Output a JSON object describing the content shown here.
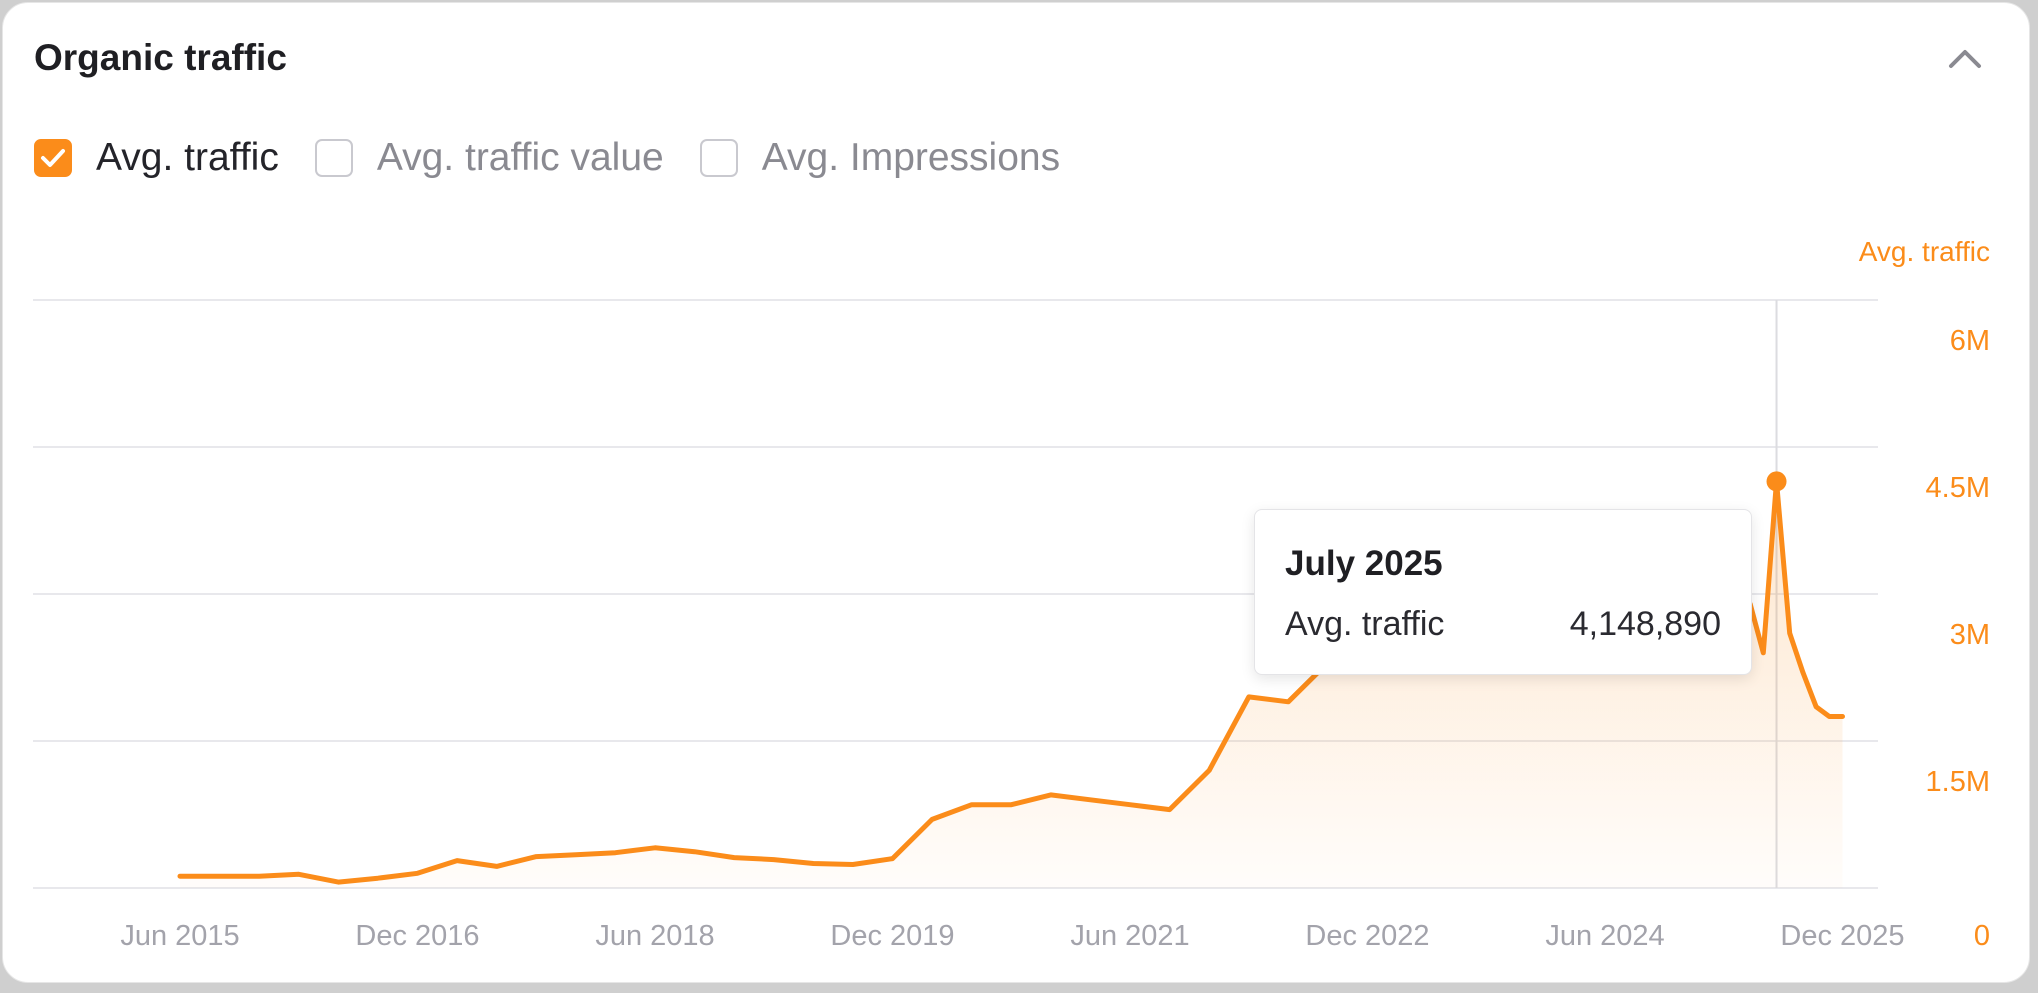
{
  "card": {
    "title": "Organic traffic",
    "collapse_icon": "chevron-up-icon"
  },
  "metrics": [
    {
      "label": "Avg. traffic",
      "checked": true
    },
    {
      "label": "Avg. traffic value",
      "checked": false
    },
    {
      "label": "Avg. Impressions",
      "checked": false
    }
  ],
  "tooltip": {
    "title": "July 2025",
    "label": "Avg. traffic",
    "value": "4,148,890"
  },
  "colors": {
    "accent": "#fb8c1a",
    "grid": "#e8e8ec",
    "tick_text": "#a3a3ab"
  },
  "chart_data": {
    "type": "area",
    "axis_title": "Avg. traffic",
    "x_ticks": [
      "Jun 2015",
      "Dec 2016",
      "Jun 2018",
      "Dec 2019",
      "Jun 2021",
      "Dec 2022",
      "Jun 2024",
      "Dec 2025"
    ],
    "y_ticks": [
      {
        "value": 0,
        "label": "0"
      },
      {
        "value": 1500000,
        "label": "1.5M"
      },
      {
        "value": 3000000,
        "label": "3M"
      },
      {
        "value": 4500000,
        "label": "4.5M"
      },
      {
        "value": 6000000,
        "label": "6M"
      }
    ],
    "ylim": [
      0,
      6000000
    ],
    "grid": true,
    "highlight": {
      "x": "2025-07",
      "y": 4148890
    },
    "series": [
      {
        "x": [
          "2015-06",
          "2015-09",
          "2015-12",
          "2016-03",
          "2016-06",
          "2016-09",
          "2016-12",
          "2017-03",
          "2017-06",
          "2017-09",
          "2017-12",
          "2018-03",
          "2018-06",
          "2018-09",
          "2018-12",
          "2019-03",
          "2019-06",
          "2019-09",
          "2019-12",
          "2020-03",
          "2020-06",
          "2020-09",
          "2020-12",
          "2021-03",
          "2021-06",
          "2021-09",
          "2021-12",
          "2022-03",
          "2022-06",
          "2022-09",
          "2022-12",
          "2023-03",
          "2023-06",
          "2023-09",
          "2023-12",
          "2024-03",
          "2024-06",
          "2024-09",
          "2024-12",
          "2025-03",
          "2025-05",
          "2025-06",
          "2025-07",
          "2025-08",
          "2025-09",
          "2025-10",
          "2025-11",
          "2025-12"
        ],
        "values": [
          120000,
          120000,
          120000,
          140000,
          60000,
          100000,
          150000,
          280000,
          220000,
          320000,
          340000,
          360000,
          410000,
          370000,
          310000,
          290000,
          250000,
          240000,
          300000,
          700000,
          850000,
          850000,
          950000,
          900000,
          850000,
          800000,
          1200000,
          1950000,
          1900000,
          2300000,
          3000000,
          3200000,
          3300000,
          3250000,
          3300000,
          3350000,
          3300000,
          3200000,
          3000000,
          3000000,
          2900000,
          2400000,
          4148890,
          2600000,
          2200000,
          1850000,
          1750000,
          1750000
        ]
      }
    ]
  }
}
